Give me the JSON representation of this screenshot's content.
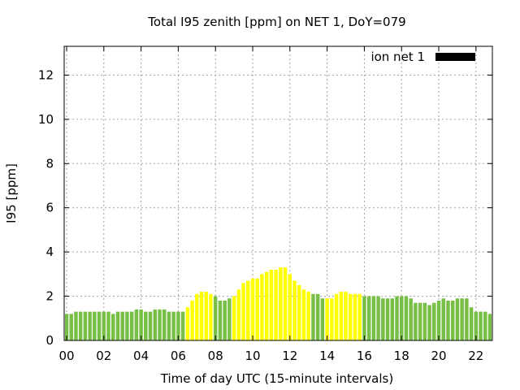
{
  "chart_data": {
    "type": "bar",
    "title": "Total I95 zenith [ppm] on NET 1, DoY=079",
    "xlabel": "Time of day UTC (15-minute intervals)",
    "ylabel": "I95 [ppm]",
    "xlim": [
      0,
      22.75
    ],
    "ylim": [
      0,
      13.3
    ],
    "x_ticks": [
      "00",
      "02",
      "04",
      "06",
      "08",
      "10",
      "12",
      "14",
      "16",
      "18",
      "20",
      "22"
    ],
    "y_ticks": [
      "0",
      "2",
      "4",
      "6",
      "8",
      "10",
      "12"
    ],
    "grid": true,
    "legend": {
      "position": "top-right",
      "entries": [
        {
          "label": "ion net 1",
          "color": "#000000"
        }
      ]
    },
    "colors": {
      "green": "#77c045",
      "yellow": "#ffff00"
    },
    "bar_interval_hours": 0.25,
    "series": [
      {
        "name": "ion net 1",
        "x": [
          0.0,
          0.25,
          0.5,
          0.75,
          1.0,
          1.25,
          1.5,
          1.75,
          2.0,
          2.25,
          2.5,
          2.75,
          3.0,
          3.25,
          3.5,
          3.75,
          4.0,
          4.25,
          4.5,
          4.75,
          5.0,
          5.25,
          5.5,
          5.75,
          6.0,
          6.25,
          6.5,
          6.75,
          7.0,
          7.25,
          7.5,
          7.75,
          8.0,
          8.25,
          8.5,
          8.75,
          9.0,
          9.25,
          9.5,
          9.75,
          10.0,
          10.25,
          10.5,
          10.75,
          11.0,
          11.25,
          11.5,
          11.75,
          12.0,
          12.25,
          12.5,
          12.75,
          13.0,
          13.25,
          13.5,
          13.75,
          14.0,
          14.25,
          14.5,
          14.75,
          15.0,
          15.25,
          15.5,
          15.75,
          16.0,
          16.25,
          16.5,
          16.75,
          17.0,
          17.25,
          17.5,
          17.75,
          18.0,
          18.25,
          18.5,
          18.75,
          19.0,
          19.25,
          19.5,
          19.75,
          20.0,
          20.25,
          20.5,
          20.75,
          21.0,
          21.25,
          21.5,
          21.75,
          22.0,
          22.25,
          22.5,
          22.75
        ],
        "values": [
          1.2,
          1.2,
          1.3,
          1.3,
          1.3,
          1.3,
          1.3,
          1.3,
          1.3,
          1.3,
          1.2,
          1.3,
          1.3,
          1.3,
          1.3,
          1.4,
          1.4,
          1.3,
          1.3,
          1.4,
          1.4,
          1.4,
          1.3,
          1.3,
          1.3,
          1.3,
          1.5,
          1.8,
          2.1,
          2.2,
          2.2,
          2.1,
          2.0,
          1.8,
          1.8,
          1.9,
          2.0,
          2.3,
          2.6,
          2.7,
          2.8,
          2.8,
          3.0,
          3.1,
          3.2,
          3.2,
          3.3,
          3.3,
          3.0,
          2.7,
          2.5,
          2.3,
          2.2,
          2.1,
          2.1,
          1.9,
          1.9,
          1.9,
          2.1,
          2.2,
          2.2,
          2.1,
          2.1,
          2.1,
          2.0,
          2.0,
          2.0,
          2.0,
          1.9,
          1.9,
          1.9,
          2.0,
          2.0,
          2.0,
          1.9,
          1.7,
          1.7,
          1.7,
          1.6,
          1.7,
          1.8,
          1.9,
          1.8,
          1.8,
          1.9,
          1.9,
          1.9,
          1.5,
          1.3,
          1.3,
          1.3,
          1.2
        ],
        "colors": [
          "green",
          "green",
          "green",
          "green",
          "green",
          "green",
          "green",
          "green",
          "green",
          "green",
          "green",
          "green",
          "green",
          "green",
          "green",
          "green",
          "green",
          "green",
          "green",
          "green",
          "green",
          "green",
          "green",
          "green",
          "green",
          "green",
          "yellow",
          "yellow",
          "yellow",
          "yellow",
          "yellow",
          "yellow",
          "green",
          "green",
          "green",
          "green",
          "yellow",
          "yellow",
          "yellow",
          "yellow",
          "yellow",
          "yellow",
          "yellow",
          "yellow",
          "yellow",
          "yellow",
          "yellow",
          "yellow",
          "yellow",
          "yellow",
          "yellow",
          "yellow",
          "yellow",
          "green",
          "green",
          "green",
          "yellow",
          "yellow",
          "yellow",
          "yellow",
          "yellow",
          "yellow",
          "yellow",
          "yellow",
          "green",
          "green",
          "green",
          "green",
          "green",
          "green",
          "green",
          "green",
          "green",
          "green",
          "green",
          "green",
          "green",
          "green",
          "green",
          "green",
          "green",
          "green",
          "green",
          "green",
          "green",
          "green",
          "green",
          "green",
          "green",
          "green",
          "green",
          "green"
        ]
      }
    ]
  }
}
